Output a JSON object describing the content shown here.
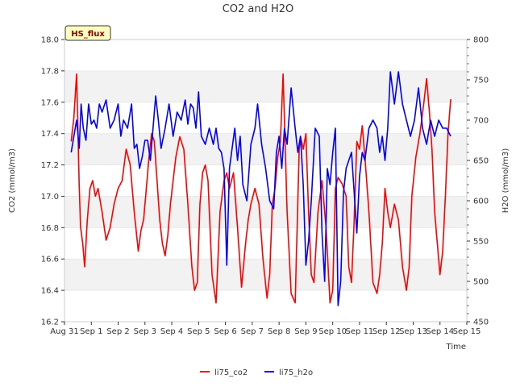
{
  "chart_data": {
    "type": "line",
    "title": "CO2 and H2O",
    "xlabel": "Time",
    "ylabel_left": "CO2 (mmol/m3)",
    "ylabel_right": "H2O (mmol/m3)",
    "badge": "HS_flux",
    "x_tick_labels": [
      "Aug 31",
      "Sep 1",
      "Sep 2",
      "Sep 3",
      "Sep 4",
      "Sep 5",
      "Sep 6",
      "Sep 7",
      "Sep 8",
      "Sep 9",
      "Sep 10",
      "Sep 11",
      "Sep 12",
      "Sep 13",
      "Sep 14",
      "Sep 15"
    ],
    "xlim_days": [
      0,
      15
    ],
    "ylim_left": [
      16.2,
      18.0
    ],
    "ylim_right": [
      450,
      800
    ],
    "y_left_ticks": [
      "16.2",
      "16.4",
      "16.6",
      "16.8",
      "17.0",
      "17.2",
      "17.4",
      "17.6",
      "17.8",
      "18.0"
    ],
    "y_right_ticks": [
      "450",
      "500",
      "550",
      "600",
      "650",
      "700",
      "750",
      "800"
    ],
    "series": [
      {
        "name": "li75_co2",
        "color": "#ff0000",
        "axis": "left",
        "x": [
          0.25,
          0.35,
          0.45,
          0.5,
          0.55,
          0.6,
          0.68,
          0.75,
          0.85,
          0.95,
          1.05,
          1.15,
          1.25,
          1.4,
          1.55,
          1.7,
          1.85,
          2.0,
          2.15,
          2.3,
          2.45,
          2.6,
          2.75,
          2.85,
          2.95,
          3.05,
          3.15,
          3.25,
          3.35,
          3.45,
          3.55,
          3.65,
          3.75,
          3.85,
          3.95,
          4.05,
          4.15,
          4.3,
          4.45,
          4.6,
          4.75,
          4.85,
          4.95,
          5.05,
          5.15,
          5.25,
          5.35,
          5.5,
          5.65,
          5.8,
          5.95,
          6.05,
          6.15,
          6.3,
          6.45,
          6.6,
          6.75,
          6.85,
          6.95,
          7.1,
          7.25,
          7.4,
          7.55,
          7.65,
          7.75,
          7.85,
          7.95,
          8.05,
          8.15,
          8.3,
          8.45,
          8.6,
          8.75,
          8.8,
          8.9,
          9.0,
          9.1,
          9.2,
          9.3,
          9.45,
          9.6,
          9.75,
          9.9,
          10.0,
          10.1,
          10.2,
          10.35,
          10.5,
          10.6,
          10.7,
          10.8,
          10.9,
          11.0,
          11.1,
          11.2,
          11.35,
          11.5,
          11.65,
          11.75,
          11.85,
          11.95,
          12.05,
          12.15,
          12.3,
          12.45,
          12.6,
          12.75,
          12.85,
          12.95,
          13.1,
          13.25,
          13.4,
          13.5,
          13.6,
          13.7,
          13.8,
          13.9,
          14.0,
          14.1,
          14.2,
          14.3,
          14.4
        ],
        "y": [
          17.35,
          17.5,
          17.78,
          17.45,
          17.05,
          16.8,
          16.7,
          16.55,
          16.85,
          17.05,
          17.1,
          17.0,
          17.05,
          16.9,
          16.72,
          16.8,
          16.95,
          17.05,
          17.1,
          17.3,
          17.2,
          16.9,
          16.65,
          16.78,
          16.85,
          17.05,
          17.25,
          17.4,
          17.35,
          17.1,
          16.85,
          16.7,
          16.62,
          16.75,
          16.95,
          17.1,
          17.25,
          17.38,
          17.3,
          16.95,
          16.55,
          16.4,
          16.45,
          16.95,
          17.15,
          17.2,
          17.1,
          16.5,
          16.32,
          16.9,
          17.1,
          17.15,
          17.05,
          17.15,
          16.8,
          16.42,
          16.7,
          16.85,
          16.95,
          17.05,
          16.95,
          16.6,
          16.35,
          16.5,
          16.95,
          17.05,
          17.25,
          17.35,
          17.78,
          16.9,
          16.38,
          16.32,
          17.3,
          17.38,
          17.3,
          17.4,
          16.9,
          16.5,
          16.45,
          16.9,
          17.1,
          16.8,
          16.32,
          16.4,
          17.05,
          17.12,
          17.08,
          17.0,
          16.55,
          16.45,
          16.85,
          17.35,
          17.3,
          17.45,
          17.25,
          16.9,
          16.45,
          16.38,
          16.5,
          16.7,
          17.05,
          16.9,
          16.8,
          16.95,
          16.85,
          16.55,
          16.4,
          16.55,
          17.0,
          17.25,
          17.4,
          17.6,
          17.75,
          17.55,
          17.3,
          16.9,
          16.7,
          16.5,
          16.65,
          17.0,
          17.4,
          17.62
        ]
      },
      {
        "name": "li75_h2o",
        "color": "#0000ff",
        "axis": "right",
        "x": [
          0.25,
          0.35,
          0.45,
          0.55,
          0.62,
          0.7,
          0.8,
          0.9,
          1.0,
          1.1,
          1.2,
          1.3,
          1.4,
          1.55,
          1.7,
          1.85,
          2.0,
          2.1,
          2.2,
          2.35,
          2.5,
          2.6,
          2.7,
          2.8,
          2.9,
          3.0,
          3.1,
          3.2,
          3.3,
          3.4,
          3.5,
          3.6,
          3.75,
          3.9,
          4.05,
          4.2,
          4.35,
          4.5,
          4.6,
          4.7,
          4.8,
          4.9,
          5.0,
          5.1,
          5.25,
          5.4,
          5.55,
          5.65,
          5.75,
          5.85,
          5.95,
          6.05,
          6.15,
          6.25,
          6.35,
          6.45,
          6.55,
          6.65,
          6.8,
          6.95,
          7.1,
          7.2,
          7.35,
          7.5,
          7.65,
          7.8,
          7.9,
          8.0,
          8.1,
          8.2,
          8.3,
          8.45,
          8.6,
          8.7,
          8.8,
          8.9,
          9.0,
          9.1,
          9.2,
          9.35,
          9.5,
          9.6,
          9.7,
          9.8,
          9.9,
          10.0,
          10.1,
          10.2,
          10.3,
          10.4,
          10.5,
          10.6,
          10.7,
          10.8,
          10.9,
          11.0,
          11.1,
          11.2,
          11.35,
          11.5,
          11.65,
          11.75,
          11.85,
          11.95,
          12.05,
          12.15,
          12.3,
          12.45,
          12.6,
          12.75,
          12.9,
          13.05,
          13.2,
          13.35,
          13.5,
          13.65,
          13.8,
          13.95,
          14.1,
          14.25,
          14.4
        ],
        "y": [
          660,
          680,
          700,
          665,
          720,
          690,
          675,
          720,
          695,
          700,
          690,
          720,
          710,
          725,
          690,
          700,
          720,
          680,
          700,
          690,
          720,
          665,
          670,
          640,
          655,
          675,
          675,
          650,
          690,
          730,
          700,
          665,
          690,
          720,
          680,
          710,
          700,
          725,
          695,
          720,
          715,
          690,
          735,
          680,
          670,
          690,
          670,
          690,
          665,
          660,
          640,
          520,
          640,
          665,
          690,
          650,
          680,
          620,
          600,
          670,
          690,
          720,
          670,
          640,
          600,
          590,
          660,
          680,
          640,
          690,
          670,
          740,
          690,
          660,
          680,
          620,
          520,
          550,
          600,
          690,
          680,
          560,
          500,
          640,
          620,
          660,
          690,
          470,
          500,
          610,
          640,
          650,
          660,
          610,
          560,
          630,
          660,
          650,
          690,
          700,
          690,
          660,
          680,
          650,
          690,
          760,
          720,
          760,
          720,
          700,
          680,
          700,
          740,
          690,
          670,
          700,
          680,
          700,
          690,
          690,
          680
        ]
      }
    ]
  }
}
